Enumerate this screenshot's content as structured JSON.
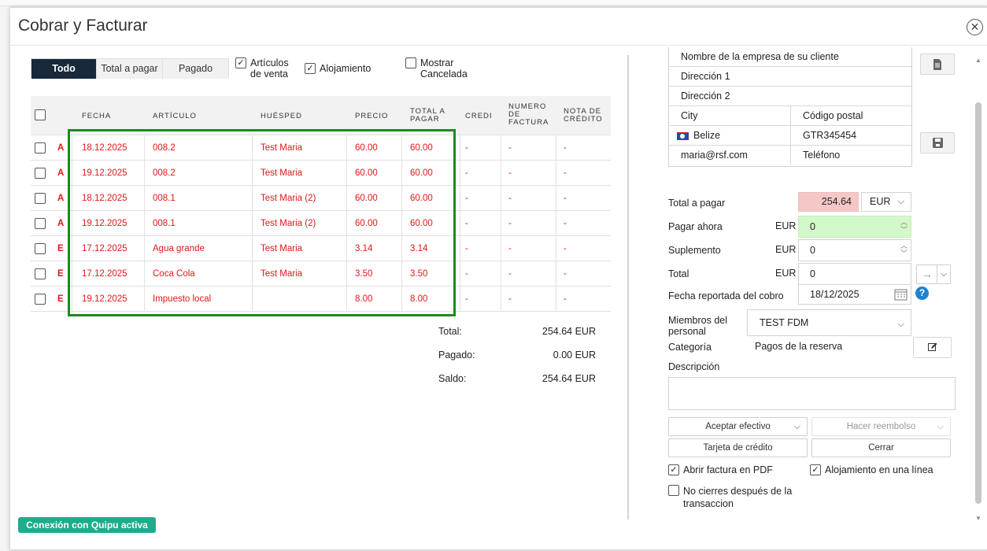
{
  "modal": {
    "title": "Cobrar y Facturar",
    "close_icon": "close-icon"
  },
  "tabs": [
    "Todo",
    "Total a pagar",
    "Pagado"
  ],
  "filters": {
    "articulos": "Artículos de venta",
    "alojamiento": "Alojamiento",
    "mostrar": "Mostrar Canceladas"
  },
  "table": {
    "headers": {
      "fecha": "FECHA",
      "articulo": "ARTÍCULO",
      "huesped": "HUÉSPED",
      "precio": "PRECIO",
      "total_a_pagar": "TOTAL A PAGAR",
      "credito": "CRÉDITO",
      "numero_factura": "NÚMERO DE FACTURA",
      "nota_credito": "NOTA DE CRÉDITO"
    },
    "rows": [
      {
        "type": "A",
        "fecha": "18.12.2025",
        "articulo": "008.2",
        "huesped": "Test Maria",
        "precio": "60.00",
        "total": "60.00",
        "credito": "-",
        "factura": "-",
        "nota": "-"
      },
      {
        "type": "A",
        "fecha": "19.12.2025",
        "articulo": "008.2",
        "huesped": "Test Maria",
        "precio": "60.00",
        "total": "60.00",
        "credito": "-",
        "factura": "-",
        "nota": "-"
      },
      {
        "type": "A",
        "fecha": "18.12.2025",
        "articulo": "008.1",
        "huesped": "Test Maria (2)",
        "precio": "60.00",
        "total": "60.00",
        "credito": "-",
        "factura": "-",
        "nota": "-"
      },
      {
        "type": "A",
        "fecha": "19.12.2025",
        "articulo": "008.1",
        "huesped": "Test Maria (2)",
        "precio": "60.00",
        "total": "60.00",
        "credito": "-",
        "factura": "-",
        "nota": "-"
      },
      {
        "type": "E",
        "fecha": "17.12.2025",
        "articulo": "Agua grande",
        "huesped": "Test Maria",
        "precio": "3.14",
        "total": "3.14",
        "credito": "-",
        "factura": "-",
        "nota": "-"
      },
      {
        "type": "E",
        "fecha": "17.12.2025",
        "articulo": "Coca Cola",
        "huesped": "Test Maria",
        "precio": "3.50",
        "total": "3.50",
        "credito": "-",
        "factura": "-",
        "nota": "-"
      },
      {
        "type": "E",
        "fecha": "19.12.2025",
        "articulo": "Impuesto local",
        "huesped": "",
        "precio": "8.00",
        "total": "8.00",
        "credito": "-",
        "factura": "-",
        "nota": "-"
      }
    ]
  },
  "totals": {
    "total_label": "Total:",
    "total_value": "254.64 EUR",
    "pagado_label": "Pagado:",
    "pagado_value": "0.00 EUR",
    "saldo_label": "Saldo:",
    "saldo_value": "254.64 EUR"
  },
  "client": {
    "company": "Nombre de la empresa de su cliente",
    "direccion1": "Dirección 1",
    "direccion2": "Dirección 2",
    "city": "City",
    "codigo_postal": "Código postal",
    "country": "Belize",
    "postal_value": "GTR345454",
    "email": "maria@rsf.com",
    "telefono": "Teléfono"
  },
  "payment": {
    "total_a_pagar_label": "Total a pagar",
    "total_a_pagar_value": "254.64",
    "currency": "EUR",
    "pagar_ahora_label": "Pagar ahora",
    "pagar_ahora_value": "0",
    "suplemento_label": "Suplemento",
    "suplemento_value": "0",
    "total_label": "Total",
    "total_value": "0",
    "eur": "EUR",
    "fecha_label": "Fecha reportada del cobro",
    "fecha_value": "18/12/2025",
    "miembros_label": "Miembros del personal",
    "miembros_value": "TEST  FDM",
    "categoria_label": "Categoría",
    "categoria_value": "Pagos de la reserva",
    "descripcion_label": "Descripción"
  },
  "actions": {
    "aceptar": "Aceptar efectivo",
    "reembolso": "Hacer reembolso",
    "tarjeta": "Tarjeta de crédito",
    "cerrar": "Cerrar",
    "abrir_pdf": "Abrir factura en PDF",
    "alojamiento_linea": "Alojamiento en una línea",
    "no_cierres": "No cierres después de la transaccion"
  },
  "footer": {
    "quipu": "Conexión con Quipu activa"
  },
  "colors": {
    "accent": "#17293a",
    "error_red": "#e01818",
    "highlight": "#1e8a1e",
    "quipu": "#1eac8a",
    "total_bg": "#f5c8c8",
    "pay_bg": "#d3f8c9"
  }
}
